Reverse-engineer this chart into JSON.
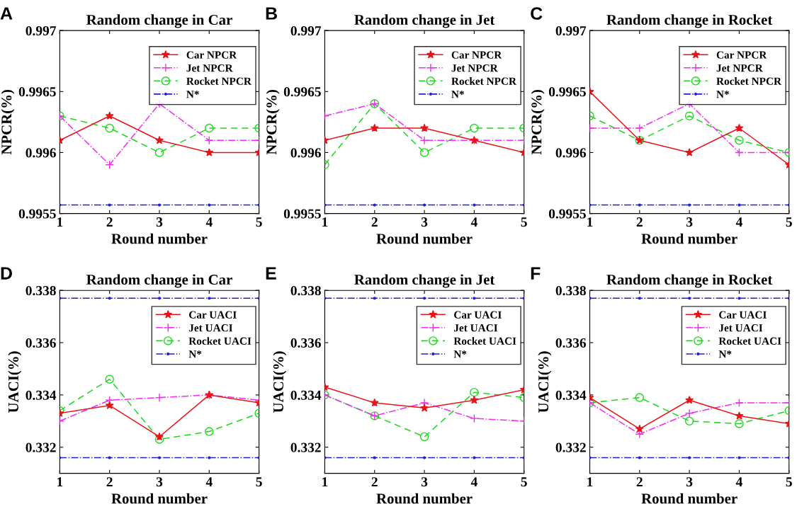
{
  "chart_data": [
    {
      "type": "line",
      "title": "Random change in Car",
      "xlabel": "Round number",
      "ylabel": "NPCR(%)",
      "annotations": [
        "A"
      ],
      "x": [
        1,
        2,
        3,
        4,
        5
      ],
      "xlim": [
        1,
        5
      ],
      "xticks": [
        1,
        2,
        3,
        4,
        5
      ],
      "ylim": [
        0.9955,
        0.997
      ],
      "yticks": [
        0.9955,
        0.996,
        0.9965,
        0.997
      ],
      "legend": "top right",
      "grid": false,
      "series": [
        {
          "name": "Car NPCR",
          "color": "#e8141b",
          "marker": "star",
          "line_style": "solid",
          "values": [
            0.9961,
            0.9963,
            0.9961,
            0.996,
            0.996
          ]
        },
        {
          "name": "Jet NPCR",
          "color": "#f02ef0",
          "marker": "cross",
          "line_style": "dashdot",
          "values": [
            0.9963,
            0.9959,
            0.9964,
            0.9961,
            0.9961
          ]
        },
        {
          "name": "Rocket NPCR",
          "color": "#1ed81e",
          "marker": "circle",
          "line_style": "dashed",
          "values": [
            0.9963,
            0.9962,
            0.996,
            0.9962,
            0.9962
          ]
        },
        {
          "name": "N*",
          "color": "#2020d0",
          "marker": "point",
          "line_style": "dashdot",
          "values": [
            0.99557,
            0.99557,
            0.99557,
            0.99557,
            0.99557
          ]
        }
      ]
    },
    {
      "type": "line",
      "title": "Random change in Jet",
      "xlabel": "Round number",
      "ylabel": "NPCR(%)",
      "annotations": [
        "B"
      ],
      "x": [
        1,
        2,
        3,
        4,
        5
      ],
      "xlim": [
        1,
        5
      ],
      "xticks": [
        1,
        2,
        3,
        4,
        5
      ],
      "ylim": [
        0.9955,
        0.997
      ],
      "yticks": [
        0.9955,
        0.996,
        0.9965,
        0.997
      ],
      "legend": "top right",
      "grid": false,
      "series": [
        {
          "name": "Car NPCR",
          "color": "#e8141b",
          "marker": "star",
          "line_style": "solid",
          "values": [
            0.9961,
            0.9962,
            0.9962,
            0.9961,
            0.996
          ]
        },
        {
          "name": "Jet NPCR",
          "color": "#f02ef0",
          "marker": "cross",
          "line_style": "dashdot",
          "values": [
            0.9963,
            0.9964,
            0.9961,
            0.9961,
            0.9961
          ]
        },
        {
          "name": "Rocket NPCR",
          "color": "#1ed81e",
          "marker": "circle",
          "line_style": "dashed",
          "values": [
            0.9959,
            0.9964,
            0.996,
            0.9962,
            0.9962
          ]
        },
        {
          "name": "N*",
          "color": "#2020d0",
          "marker": "point",
          "line_style": "dashdot",
          "values": [
            0.99557,
            0.99557,
            0.99557,
            0.99557,
            0.99557
          ]
        }
      ]
    },
    {
      "type": "line",
      "title": "Random change in Rocket",
      "xlabel": "Round number",
      "ylabel": "NPCR(%)",
      "annotations": [
        "C"
      ],
      "x": [
        1,
        2,
        3,
        4,
        5
      ],
      "xlim": [
        1,
        5
      ],
      "xticks": [
        1,
        2,
        3,
        4,
        5
      ],
      "ylim": [
        0.9955,
        0.997
      ],
      "yticks": [
        0.9955,
        0.996,
        0.9965,
        0.997
      ],
      "legend": "top right",
      "grid": false,
      "series": [
        {
          "name": "Car NPCR",
          "color": "#e8141b",
          "marker": "star",
          "line_style": "solid",
          "values": [
            0.9965,
            0.9961,
            0.996,
            0.9962,
            0.9959
          ]
        },
        {
          "name": "Jet NPCR",
          "color": "#f02ef0",
          "marker": "cross",
          "line_style": "dashdot",
          "values": [
            0.9962,
            0.9962,
            0.9964,
            0.996,
            0.996
          ]
        },
        {
          "name": "Rocket NPCR",
          "color": "#1ed81e",
          "marker": "circle",
          "line_style": "dashed",
          "values": [
            0.9963,
            0.9961,
            0.9963,
            0.9961,
            0.996
          ]
        },
        {
          "name": "N*",
          "color": "#2020d0",
          "marker": "point",
          "line_style": "dashdot",
          "values": [
            0.99557,
            0.99557,
            0.99557,
            0.99557,
            0.99557
          ]
        }
      ]
    },
    {
      "type": "line",
      "title": "Random change in Car",
      "xlabel": "Round number",
      "ylabel": "UACI(%)",
      "annotations": [
        "D"
      ],
      "x": [
        1,
        2,
        3,
        4,
        5
      ],
      "xlim": [
        1,
        5
      ],
      "xticks": [
        1,
        2,
        3,
        4,
        5
      ],
      "ylim": [
        0.331,
        0.338
      ],
      "yticks": [
        0.332,
        0.334,
        0.336,
        0.338
      ],
      "legend": "top right",
      "grid": false,
      "series": [
        {
          "name": "Car UACI",
          "color": "#e8141b",
          "marker": "star",
          "line_style": "solid",
          "values": [
            0.3333,
            0.3336,
            0.3324,
            0.334,
            0.3337
          ]
        },
        {
          "name": "Jet UACI",
          "color": "#f02ef0",
          "marker": "cross",
          "line_style": "dashdot",
          "values": [
            0.333,
            0.3338,
            0.3339,
            0.334,
            0.3338
          ]
        },
        {
          "name": "Rocket UACI",
          "color": "#1ed81e",
          "marker": "circle",
          "line_style": "dashed",
          "values": [
            0.3334,
            0.3346,
            0.3323,
            0.3326,
            0.3333
          ]
        },
        {
          "name": "N*",
          "color": "#2020d0",
          "marker": "point",
          "line_style": "dashdot",
          "values": [
            0.3377,
            0.3377,
            0.3377,
            0.3377,
            0.3377
          ]
        },
        {
          "color": "#2020d0",
          "marker": "point",
          "line_style": "dashdot",
          "values": [
            0.3316,
            0.3316,
            0.3316,
            0.3316,
            0.3316
          ]
        }
      ]
    },
    {
      "type": "line",
      "title": "Random change in Jet",
      "xlabel": "Round number",
      "ylabel": "UACI(%)",
      "annotations": [
        "E"
      ],
      "x": [
        1,
        2,
        3,
        4,
        5
      ],
      "xlim": [
        1,
        5
      ],
      "xticks": [
        1,
        2,
        3,
        4,
        5
      ],
      "ylim": [
        0.331,
        0.338
      ],
      "yticks": [
        0.332,
        0.334,
        0.336,
        0.338
      ],
      "legend": "top right",
      "grid": false,
      "series": [
        {
          "name": "Car UACI",
          "color": "#e8141b",
          "marker": "star",
          "line_style": "solid",
          "values": [
            0.3343,
            0.3337,
            0.3335,
            0.3338,
            0.3342
          ]
        },
        {
          "name": "Jet UACI",
          "color": "#f02ef0",
          "marker": "cross",
          "line_style": "dashdot",
          "values": [
            0.334,
            0.3332,
            0.3337,
            0.3331,
            0.333
          ]
        },
        {
          "name": "Rocket UACI",
          "color": "#1ed81e",
          "marker": "circle",
          "line_style": "dashed",
          "values": [
            0.334,
            0.3332,
            0.3324,
            0.3341,
            0.3339
          ]
        },
        {
          "name": "N*",
          "color": "#2020d0",
          "marker": "point",
          "line_style": "dashdot",
          "values": [
            0.3377,
            0.3377,
            0.3377,
            0.3377,
            0.3377
          ]
        },
        {
          "color": "#2020d0",
          "marker": "point",
          "line_style": "dashdot",
          "values": [
            0.3316,
            0.3316,
            0.3316,
            0.3316,
            0.3316
          ]
        }
      ]
    },
    {
      "type": "line",
      "title": "Random change in Rocket",
      "xlabel": "Round number",
      "ylabel": "UACI(%)",
      "annotations": [
        "F"
      ],
      "x": [
        1,
        2,
        3,
        4,
        5
      ],
      "xlim": [
        1,
        5
      ],
      "xticks": [
        1,
        2,
        3,
        4,
        5
      ],
      "ylim": [
        0.331,
        0.338
      ],
      "yticks": [
        0.332,
        0.334,
        0.336,
        0.338
      ],
      "legend": "top right",
      "grid": false,
      "series": [
        {
          "name": "Car UACI",
          "color": "#e8141b",
          "marker": "star",
          "line_style": "solid",
          "values": [
            0.3339,
            0.3327,
            0.3338,
            0.3332,
            0.3329
          ]
        },
        {
          "name": "Jet UACI",
          "color": "#f02ef0",
          "marker": "cross",
          "line_style": "dashdot",
          "values": [
            0.3337,
            0.3325,
            0.3333,
            0.3337,
            0.3337
          ]
        },
        {
          "name": "Rocket UACI",
          "color": "#1ed81e",
          "marker": "circle",
          "line_style": "dashed",
          "values": [
            0.3337,
            0.3339,
            0.333,
            0.3329,
            0.3334
          ]
        },
        {
          "name": "N*",
          "color": "#2020d0",
          "marker": "point",
          "line_style": "dashdot",
          "values": [
            0.3377,
            0.3377,
            0.3377,
            0.3377,
            0.3377
          ]
        },
        {
          "color": "#2020d0",
          "marker": "point",
          "line_style": "dashdot",
          "values": [
            0.3316,
            0.3316,
            0.3316,
            0.3316,
            0.3316
          ]
        }
      ]
    }
  ]
}
